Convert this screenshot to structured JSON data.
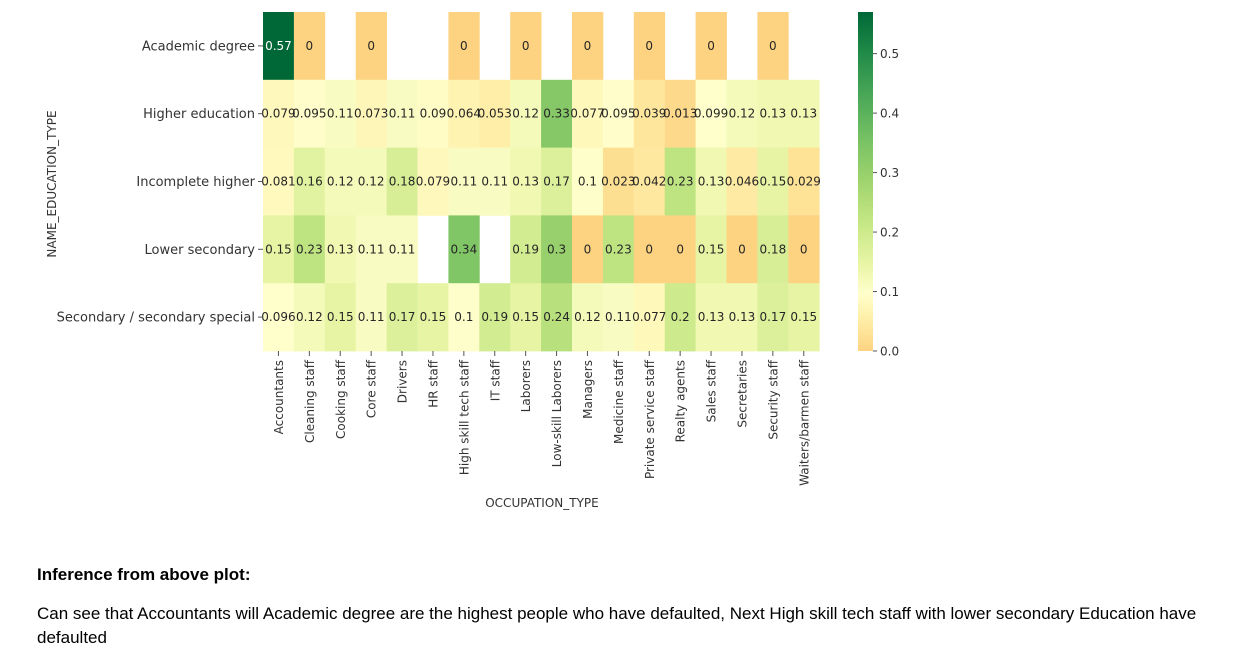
{
  "chart_data": {
    "type": "heatmap",
    "xlabel": "OCCUPATION_TYPE",
    "ylabel": "NAME_EDUCATION_TYPE",
    "x_categories": [
      "Accountants",
      "Cleaning staff",
      "Cooking staff",
      "Core staff",
      "Drivers",
      "HR staff",
      "High skill tech staff",
      "IT staff",
      "Laborers",
      "Low-skill Laborers",
      "Managers",
      "Medicine staff",
      "Private service staff",
      "Realty agents",
      "Sales staff",
      "Secretaries",
      "Security staff",
      "Waiters/barmen staff"
    ],
    "y_categories": [
      "Academic degree",
      "Higher education",
      "Incomplete higher",
      "Lower secondary",
      "Secondary / secondary special"
    ],
    "values": [
      [
        0.57,
        0,
        null,
        0,
        null,
        null,
        0,
        null,
        0,
        null,
        0,
        null,
        0,
        null,
        0,
        null,
        0,
        null
      ],
      [
        0.079,
        0.095,
        0.11,
        0.073,
        0.11,
        0.09,
        0.064,
        0.053,
        0.12,
        0.33,
        0.077,
        0.095,
        0.039,
        0.013,
        0.099,
        0.12,
        0.13,
        0.13
      ],
      [
        0.081,
        0.16,
        0.12,
        0.12,
        0.18,
        0.079,
        0.11,
        0.11,
        0.13,
        0.17,
        0.1,
        0.023,
        0.042,
        0.23,
        0.13,
        0.046,
        0.15,
        0.029
      ],
      [
        0.15,
        0.23,
        0.13,
        0.11,
        0.11,
        null,
        0.34,
        null,
        0.19,
        0.3,
        0,
        0.23,
        0,
        0,
        0.15,
        0,
        0.18,
        0
      ],
      [
        0.096,
        0.12,
        0.15,
        0.11,
        0.17,
        0.15,
        0.1,
        0.19,
        0.15,
        0.24,
        0.12,
        0.11,
        0.077,
        0.2,
        0.13,
        0.13,
        0.17,
        0.15
      ]
    ],
    "colormap": "RdYlGn",
    "color_range": [
      0.0,
      0.57
    ],
    "colorbar_ticks": [
      0.0,
      0.1,
      0.2,
      0.3,
      0.4,
      0.5
    ],
    "colorbar_tick_labels": [
      "0.0",
      "0.1",
      "0.2",
      "0.3",
      "0.4",
      "0.5"
    ],
    "annotated": true,
    "grid": false,
    "legend": "colorbar-right"
  },
  "inference": {
    "heading": "Inference from above plot:",
    "body": "Can see that Accountants will Academic degree are the highest people who have defaulted, Next High skill tech staff with lower secondary Education have defaulted"
  }
}
